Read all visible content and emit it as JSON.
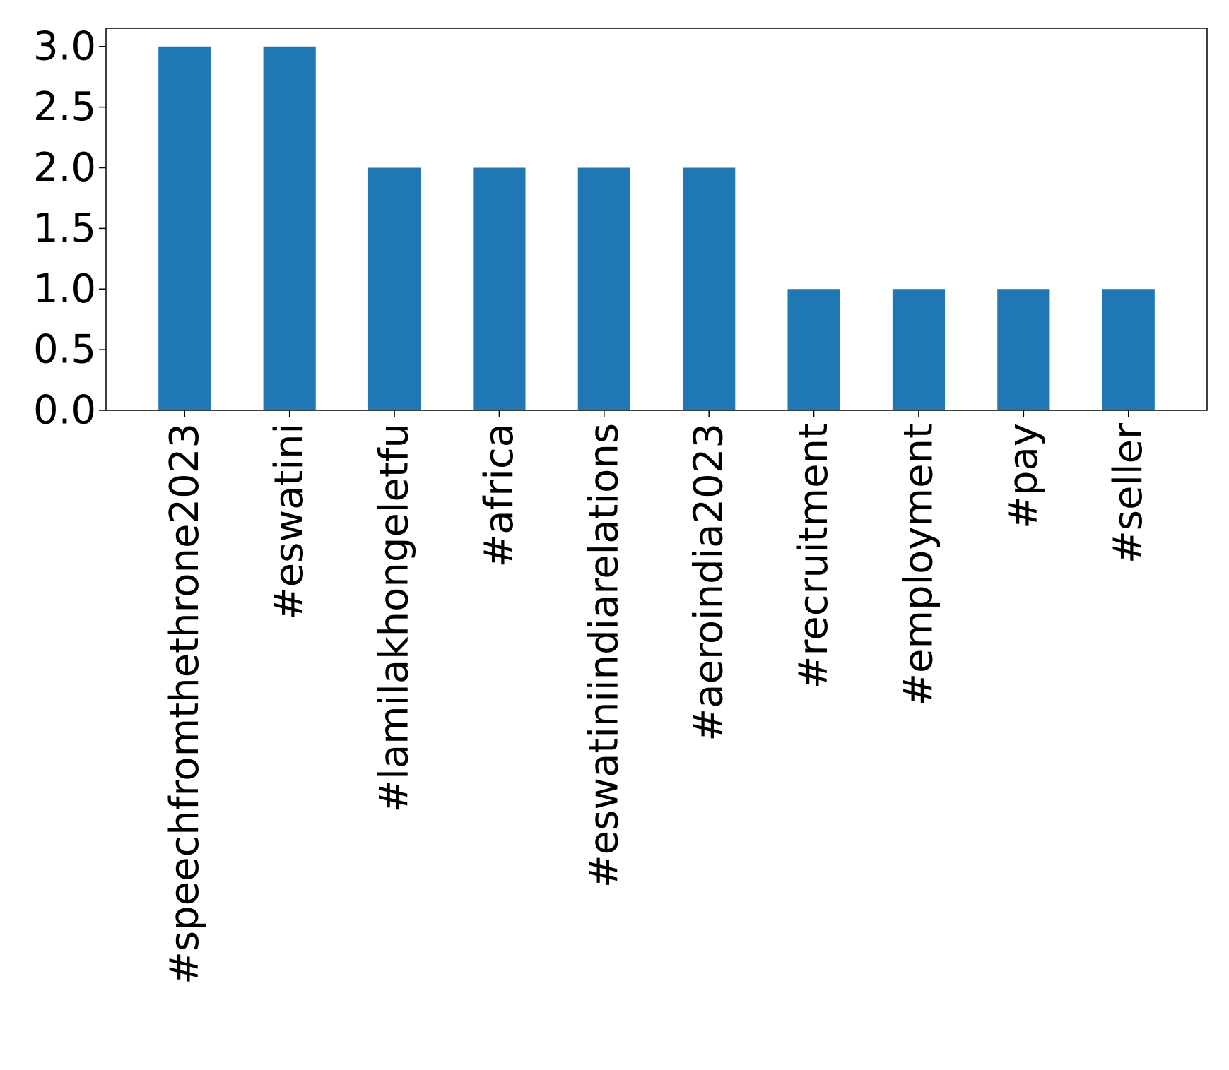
{
  "chart_data": {
    "type": "bar",
    "title": "",
    "xlabel": "",
    "ylabel": "",
    "categories": [
      "#speechfromthethrone2023",
      "#eswatini",
      "#lamilakhongeletfu",
      "#africa",
      "#eswatiniindiarelations",
      "#aeroindia2023",
      "#recruitment",
      "#employment",
      "#pay",
      "#seller"
    ],
    "values": [
      3,
      3,
      2,
      2,
      2,
      2,
      1,
      1,
      1,
      1
    ],
    "ylim": [
      0,
      3.15
    ],
    "yticks": [
      "0.0",
      "0.5",
      "1.0",
      "1.5",
      "2.0",
      "2.5",
      "3.0"
    ],
    "bar_color": "#1f77b4",
    "grid": false,
    "legend": "none"
  }
}
